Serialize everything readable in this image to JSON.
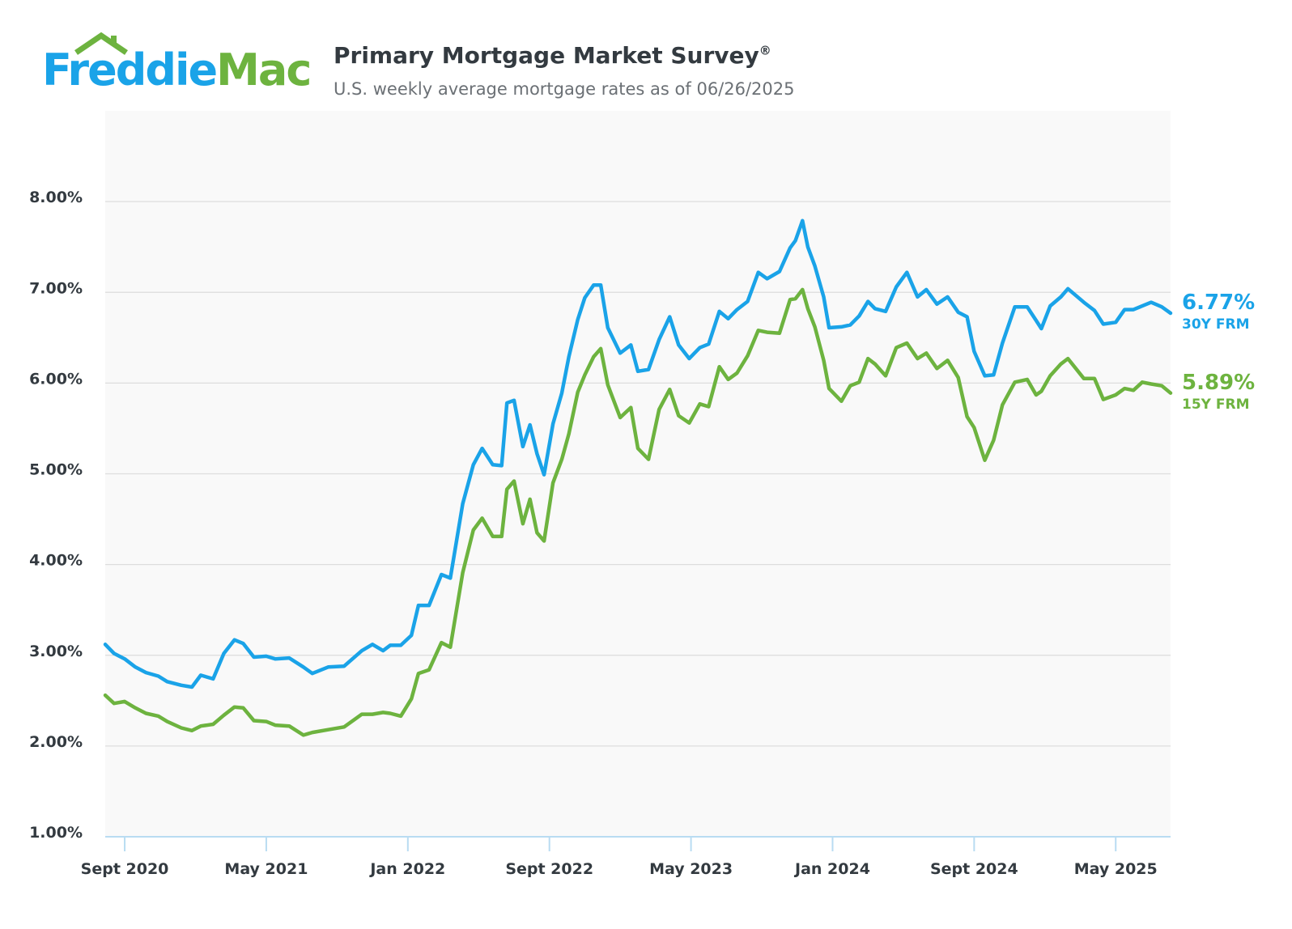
{
  "logo": {
    "part1": "Freddie",
    "part2": "Mac"
  },
  "header": {
    "title": "Primary Mortgage Market Survey",
    "title_mark": "®",
    "subtitle": "U.S. weekly average mortgage rates as of 06/26/2025"
  },
  "colors": {
    "frm30": "#1aa3e8",
    "frm15": "#6db33f",
    "plot_bg": "#f9f9f9",
    "grid": "#dddddd"
  },
  "chart_data": {
    "type": "line",
    "title": "Primary Mortgage Market Survey",
    "subtitle": "U.S. weekly average mortgage rates as of 06/26/2025",
    "y_ticks": [
      "1.00%",
      "2.00%",
      "3.00%",
      "4.00%",
      "5.00%",
      "6.00%",
      "7.00%",
      "8.00%"
    ],
    "ylim": [
      1.0,
      9.0
    ],
    "x_ticks": [
      "Sept 2020",
      "May 2021",
      "Jan 2022",
      "Sept 2022",
      "May 2023",
      "Jan 2024",
      "Sept 2024",
      "May 2025"
    ],
    "x_tick_months": [
      0,
      8,
      16,
      24,
      32,
      40,
      48,
      56
    ],
    "x_range_months": [
      -1.1,
      59.1
    ],
    "grid": "horizontal",
    "series": [
      {
        "key": "frm30",
        "name": "30Y FRM",
        "last_value": "6.77%",
        "points": [
          [
            -1.1,
            3.12
          ],
          [
            -0.6,
            3.02
          ],
          [
            0.0,
            2.96
          ],
          [
            0.6,
            2.87
          ],
          [
            1.2,
            2.81
          ],
          [
            1.9,
            2.77
          ],
          [
            2.4,
            2.71
          ],
          [
            3.2,
            2.67
          ],
          [
            3.8,
            2.65
          ],
          [
            4.3,
            2.78
          ],
          [
            5.0,
            2.74
          ],
          [
            5.6,
            3.02
          ],
          [
            6.2,
            3.17
          ],
          [
            6.7,
            3.13
          ],
          [
            7.3,
            2.98
          ],
          [
            8.0,
            2.99
          ],
          [
            8.5,
            2.96
          ],
          [
            9.3,
            2.97
          ],
          [
            10.1,
            2.87
          ],
          [
            10.6,
            2.8
          ],
          [
            11.5,
            2.87
          ],
          [
            12.4,
            2.88
          ],
          [
            13.4,
            3.05
          ],
          [
            14.0,
            3.12
          ],
          [
            14.6,
            3.05
          ],
          [
            15.0,
            3.11
          ],
          [
            15.6,
            3.11
          ],
          [
            16.2,
            3.22
          ],
          [
            16.6,
            3.55
          ],
          [
            17.2,
            3.55
          ],
          [
            17.9,
            3.89
          ],
          [
            18.4,
            3.85
          ],
          [
            19.1,
            4.67
          ],
          [
            19.7,
            5.1
          ],
          [
            20.2,
            5.28
          ],
          [
            20.8,
            5.1
          ],
          [
            21.3,
            5.09
          ],
          [
            21.6,
            5.78
          ],
          [
            22.0,
            5.81
          ],
          [
            22.5,
            5.3
          ],
          [
            22.9,
            5.54
          ],
          [
            23.3,
            5.22
          ],
          [
            23.7,
            4.99
          ],
          [
            24.2,
            5.55
          ],
          [
            24.7,
            5.89
          ],
          [
            25.1,
            6.29
          ],
          [
            25.6,
            6.7
          ],
          [
            26.0,
            6.94
          ],
          [
            26.5,
            7.08
          ],
          [
            26.9,
            7.08
          ],
          [
            27.3,
            6.61
          ],
          [
            28.0,
            6.33
          ],
          [
            28.6,
            6.42
          ],
          [
            29.0,
            6.13
          ],
          [
            29.6,
            6.15
          ],
          [
            30.2,
            6.48
          ],
          [
            30.8,
            6.73
          ],
          [
            31.3,
            6.42
          ],
          [
            31.9,
            6.27
          ],
          [
            32.5,
            6.39
          ],
          [
            33.0,
            6.43
          ],
          [
            33.6,
            6.79
          ],
          [
            34.1,
            6.71
          ],
          [
            34.6,
            6.81
          ],
          [
            35.2,
            6.9
          ],
          [
            35.8,
            7.22
          ],
          [
            36.3,
            7.15
          ],
          [
            37.0,
            7.23
          ],
          [
            37.6,
            7.49
          ],
          [
            37.9,
            7.57
          ],
          [
            38.3,
            7.79
          ],
          [
            38.6,
            7.5
          ],
          [
            39.0,
            7.29
          ],
          [
            39.5,
            6.95
          ],
          [
            39.8,
            6.61
          ],
          [
            40.5,
            6.62
          ],
          [
            41.0,
            6.64
          ],
          [
            41.5,
            6.74
          ],
          [
            42.0,
            6.9
          ],
          [
            42.4,
            6.82
          ],
          [
            43.0,
            6.79
          ],
          [
            43.6,
            7.06
          ],
          [
            44.2,
            7.22
          ],
          [
            44.8,
            6.95
          ],
          [
            45.3,
            7.03
          ],
          [
            45.9,
            6.87
          ],
          [
            46.5,
            6.95
          ],
          [
            47.1,
            6.78
          ],
          [
            47.6,
            6.73
          ],
          [
            48.0,
            6.35
          ],
          [
            48.6,
            6.08
          ],
          [
            49.1,
            6.09
          ],
          [
            49.6,
            6.44
          ],
          [
            50.3,
            6.84
          ],
          [
            51.0,
            6.84
          ],
          [
            51.5,
            6.69
          ],
          [
            51.8,
            6.6
          ],
          [
            52.3,
            6.85
          ],
          [
            52.9,
            6.95
          ],
          [
            53.3,
            7.04
          ],
          [
            54.2,
            6.89
          ],
          [
            54.8,
            6.8
          ],
          [
            55.3,
            6.65
          ],
          [
            56.0,
            6.67
          ],
          [
            56.5,
            6.81
          ],
          [
            57.0,
            6.81
          ],
          [
            57.5,
            6.85
          ],
          [
            58.0,
            6.89
          ],
          [
            58.6,
            6.84
          ],
          [
            59.1,
            6.77
          ]
        ]
      },
      {
        "key": "frm15",
        "name": "15Y FRM",
        "last_value": "5.89%",
        "points": [
          [
            -1.1,
            2.56
          ],
          [
            -0.6,
            2.47
          ],
          [
            0.0,
            2.49
          ],
          [
            0.6,
            2.42
          ],
          [
            1.2,
            2.36
          ],
          [
            1.9,
            2.33
          ],
          [
            2.4,
            2.27
          ],
          [
            3.2,
            2.2
          ],
          [
            3.8,
            2.17
          ],
          [
            4.3,
            2.22
          ],
          [
            5.0,
            2.24
          ],
          [
            5.6,
            2.34
          ],
          [
            6.2,
            2.43
          ],
          [
            6.7,
            2.42
          ],
          [
            7.3,
            2.28
          ],
          [
            8.0,
            2.27
          ],
          [
            8.5,
            2.23
          ],
          [
            9.3,
            2.22
          ],
          [
            10.1,
            2.12
          ],
          [
            10.6,
            2.15
          ],
          [
            11.5,
            2.18
          ],
          [
            12.4,
            2.21
          ],
          [
            13.4,
            2.35
          ],
          [
            14.0,
            2.35
          ],
          [
            14.6,
            2.37
          ],
          [
            15.0,
            2.36
          ],
          [
            15.6,
            2.33
          ],
          [
            16.2,
            2.52
          ],
          [
            16.6,
            2.8
          ],
          [
            17.2,
            2.84
          ],
          [
            17.9,
            3.14
          ],
          [
            18.4,
            3.09
          ],
          [
            19.1,
            3.91
          ],
          [
            19.7,
            4.38
          ],
          [
            20.2,
            4.51
          ],
          [
            20.8,
            4.31
          ],
          [
            21.3,
            4.31
          ],
          [
            21.6,
            4.83
          ],
          [
            22.0,
            4.92
          ],
          [
            22.5,
            4.45
          ],
          [
            22.9,
            4.72
          ],
          [
            23.3,
            4.35
          ],
          [
            23.7,
            4.26
          ],
          [
            24.2,
            4.9
          ],
          [
            24.7,
            5.16
          ],
          [
            25.1,
            5.44
          ],
          [
            25.6,
            5.9
          ],
          [
            26.0,
            6.09
          ],
          [
            26.5,
            6.29
          ],
          [
            26.9,
            6.38
          ],
          [
            27.3,
            5.98
          ],
          [
            28.0,
            5.62
          ],
          [
            28.6,
            5.73
          ],
          [
            29.0,
            5.28
          ],
          [
            29.6,
            5.16
          ],
          [
            30.2,
            5.71
          ],
          [
            30.8,
            5.93
          ],
          [
            31.3,
            5.64
          ],
          [
            31.9,
            5.56
          ],
          [
            32.5,
            5.77
          ],
          [
            33.0,
            5.74
          ],
          [
            33.6,
            6.18
          ],
          [
            34.1,
            6.04
          ],
          [
            34.6,
            6.11
          ],
          [
            35.2,
            6.3
          ],
          [
            35.8,
            6.58
          ],
          [
            36.3,
            6.56
          ],
          [
            37.0,
            6.55
          ],
          [
            37.6,
            6.92
          ],
          [
            37.9,
            6.93
          ],
          [
            38.3,
            7.03
          ],
          [
            38.6,
            6.82
          ],
          [
            39.0,
            6.62
          ],
          [
            39.5,
            6.25
          ],
          [
            39.8,
            5.94
          ],
          [
            40.5,
            5.8
          ],
          [
            41.0,
            5.97
          ],
          [
            41.5,
            6.01
          ],
          [
            42.0,
            6.27
          ],
          [
            42.4,
            6.21
          ],
          [
            43.0,
            6.08
          ],
          [
            43.6,
            6.39
          ],
          [
            44.2,
            6.44
          ],
          [
            44.8,
            6.27
          ],
          [
            45.3,
            6.33
          ],
          [
            45.9,
            6.16
          ],
          [
            46.5,
            6.25
          ],
          [
            47.1,
            6.06
          ],
          [
            47.6,
            5.63
          ],
          [
            48.0,
            5.51
          ],
          [
            48.6,
            5.15
          ],
          [
            49.1,
            5.37
          ],
          [
            49.6,
            5.76
          ],
          [
            50.3,
            6.01
          ],
          [
            51.0,
            6.04
          ],
          [
            51.5,
            5.87
          ],
          [
            51.8,
            5.91
          ],
          [
            52.3,
            6.08
          ],
          [
            52.9,
            6.21
          ],
          [
            53.3,
            6.27
          ],
          [
            54.2,
            6.05
          ],
          [
            54.8,
            6.05
          ],
          [
            55.3,
            5.82
          ],
          [
            56.0,
            5.87
          ],
          [
            56.5,
            5.94
          ],
          [
            57.0,
            5.92
          ],
          [
            57.5,
            6.01
          ],
          [
            58.0,
            5.99
          ],
          [
            58.6,
            5.97
          ],
          [
            59.1,
            5.89
          ]
        ]
      }
    ]
  }
}
